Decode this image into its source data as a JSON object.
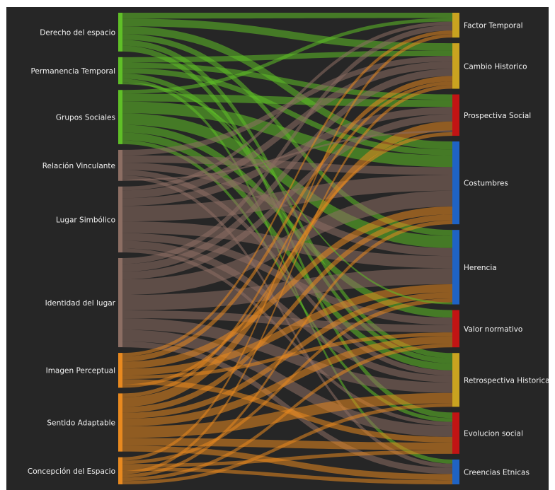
{
  "title": "",
  "colors": {
    "background": "#262626",
    "page": "#ffffff",
    "label": "#f2f2f2"
  },
  "left_nodes": [
    {
      "id": "L0",
      "label": "Derecho del espacio",
      "value": 10,
      "color": "#5fbf27"
    },
    {
      "id": "L1",
      "label": "Permanencia Temporal",
      "value": 7,
      "color": "#5fbf27"
    },
    {
      "id": "L2",
      "label": "Grupos Sociales",
      "value": 14,
      "color": "#5fbf27"
    },
    {
      "id": "L3",
      "label": "Relación Vinculante",
      "value": 8,
      "color": "#8c6e63"
    },
    {
      "id": "L4",
      "label": "Lugar Simbólico",
      "value": 17,
      "color": "#8c6e63"
    },
    {
      "id": "L5",
      "label": "Identidad del lugar",
      "value": 23,
      "color": "#8c6e63"
    },
    {
      "id": "L6",
      "label": "Imagen Perceptual",
      "value": 9,
      "color": "#e8891f"
    },
    {
      "id": "L7",
      "label": "Sentido Adaptable",
      "value": 15,
      "color": "#e8891f"
    },
    {
      "id": "L8",
      "label": "Concepción del Espacio",
      "value": 7,
      "color": "#e8891f"
    }
  ],
  "right_nodes": [
    {
      "id": "R0",
      "label": "Factor Temporal",
      "value": 6,
      "color": "#c9a320"
    },
    {
      "id": "R1",
      "label": "Cambio Historico",
      "value": 11,
      "color": "#c9a320"
    },
    {
      "id": "R2",
      "label": "Prospectiva Social",
      "value": 10,
      "color": "#c21414"
    },
    {
      "id": "R3",
      "label": "Costumbres",
      "value": 20,
      "color": "#1f63c4"
    },
    {
      "id": "R4",
      "label": "Herencia",
      "value": 18,
      "color": "#1f63c4"
    },
    {
      "id": "R5",
      "label": "Valor normativo",
      "value": 9,
      "color": "#c21414"
    },
    {
      "id": "R6",
      "label": "Retrospectiva Historica",
      "value": 13,
      "color": "#c9a320"
    },
    {
      "id": "R7",
      "label": "Evolucion social",
      "value": 10,
      "color": "#c21414"
    },
    {
      "id": "R8",
      "label": "Creencias Etnicas",
      "value": 6,
      "color": "#1f63c4"
    }
  ],
  "links": [
    [
      "L0",
      "R0",
      1.5
    ],
    [
      "L0",
      "R1",
      2
    ],
    [
      "L0",
      "R3",
      2
    ],
    [
      "L0",
      "R4",
      1.5
    ],
    [
      "L0",
      "R6",
      1.5
    ],
    [
      "L0",
      "R7",
      1.5
    ],
    [
      "L1",
      "R1",
      1.5
    ],
    [
      "L1",
      "R2",
      1.5
    ],
    [
      "L1",
      "R3",
      1.5
    ],
    [
      "L1",
      "R6",
      1.5
    ],
    [
      "L1",
      "R8",
      1
    ],
    [
      "L2",
      "R0",
      1
    ],
    [
      "L2",
      "R2",
      2
    ],
    [
      "L2",
      "R3",
      3
    ],
    [
      "L2",
      "R4",
      3
    ],
    [
      "L2",
      "R5",
      2
    ],
    [
      "L2",
      "R6",
      2
    ],
    [
      "L2",
      "R7",
      1
    ],
    [
      "L3",
      "R1",
      1.5
    ],
    [
      "L3",
      "R3",
      2
    ],
    [
      "L3",
      "R4",
      2
    ],
    [
      "L3",
      "R6",
      1.5
    ],
    [
      "L3",
      "R8",
      1
    ],
    [
      "L4",
      "R0",
      1
    ],
    [
      "L4",
      "R1",
      2
    ],
    [
      "L4",
      "R2",
      2
    ],
    [
      "L4",
      "R3",
      4
    ],
    [
      "L4",
      "R4",
      3
    ],
    [
      "L4",
      "R5",
      2
    ],
    [
      "L4",
      "R6",
      2
    ],
    [
      "L4",
      "R7",
      1
    ],
    [
      "L5",
      "R0",
      1.5
    ],
    [
      "L5",
      "R1",
      2
    ],
    [
      "L5",
      "R2",
      2
    ],
    [
      "L5",
      "R3",
      4
    ],
    [
      "L5",
      "R4",
      4
    ],
    [
      "L5",
      "R5",
      2
    ],
    [
      "L5",
      "R6",
      3
    ],
    [
      "L5",
      "R7",
      3
    ],
    [
      "L5",
      "R8",
      1.5
    ],
    [
      "L6",
      "R0",
      1
    ],
    [
      "L6",
      "R1",
      1.5
    ],
    [
      "L6",
      "R3",
      2
    ],
    [
      "L6",
      "R4",
      2
    ],
    [
      "L6",
      "R5",
      1
    ],
    [
      "L6",
      "R7",
      1.5
    ],
    [
      "L7",
      "R1",
      1
    ],
    [
      "L7",
      "R2",
      2.5
    ],
    [
      "L7",
      "R3",
      1.5
    ],
    [
      "L7",
      "R4",
      1.5
    ],
    [
      "L7",
      "R5",
      2
    ],
    [
      "L7",
      "R6",
      3
    ],
    [
      "L7",
      "R7",
      2
    ],
    [
      "L7",
      "R8",
      1.5
    ],
    [
      "L8",
      "R0",
      1
    ],
    [
      "L8",
      "R2",
      0
    ],
    [
      "L8",
      "R3",
      0
    ],
    [
      "L8",
      "R4",
      1
    ],
    [
      "L8",
      "R5",
      0
    ],
    [
      "L8",
      "R6",
      0
    ],
    [
      "L8",
      "R7",
      1
    ],
    [
      "L8",
      "R8",
      1
    ],
    [
      "L1",
      "R4",
      0.5
    ],
    [
      "L3",
      "R2",
      0.5
    ],
    [
      "L6",
      "R2",
      1
    ],
    [
      "L8",
      "R1",
      1
    ],
    [
      "L8",
      "R3",
      1
    ],
    [
      "L8",
      "R5",
      1
    ],
    [
      "L8",
      "R6",
      1
    ]
  ]
}
